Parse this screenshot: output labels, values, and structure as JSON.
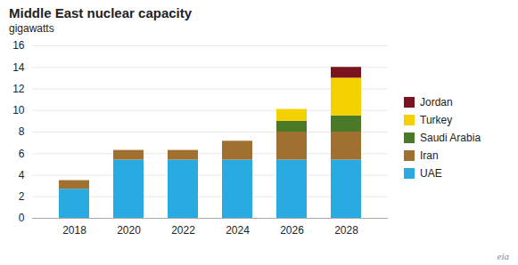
{
  "chart_data": {
    "type": "bar",
    "stacked": true,
    "title": "Middle East nuclear capacity",
    "subtitle": "gigawatts",
    "categories": [
      "2018",
      "2020",
      "2022",
      "2024",
      "2026",
      "2028"
    ],
    "series": [
      {
        "name": "UAE",
        "color": "#29abe2",
        "values": [
          2.7,
          5.4,
          5.4,
          5.4,
          5.4,
          5.4
        ]
      },
      {
        "name": "Iran",
        "color": "#a07030",
        "values": [
          0.8,
          0.9,
          0.9,
          1.75,
          2.6,
          2.6
        ]
      },
      {
        "name": "Saudi Arabia",
        "color": "#4a7a28",
        "values": [
          0.0,
          0.0,
          0.0,
          0.0,
          1.0,
          1.5
        ]
      },
      {
        "name": "Turkey",
        "color": "#f5d000",
        "values": [
          0.0,
          0.0,
          0.0,
          0.0,
          1.1,
          3.5
        ]
      },
      {
        "name": "Jordan",
        "color": "#7a1520",
        "values": [
          0.0,
          0.0,
          0.0,
          0.0,
          0.0,
          1.0
        ]
      }
    ],
    "ylim": [
      0,
      16
    ],
    "yticks": [
      0,
      2,
      4,
      6,
      8,
      10,
      12,
      14,
      16
    ],
    "grid": true,
    "legend": "right",
    "annotations": [
      "eia"
    ]
  }
}
